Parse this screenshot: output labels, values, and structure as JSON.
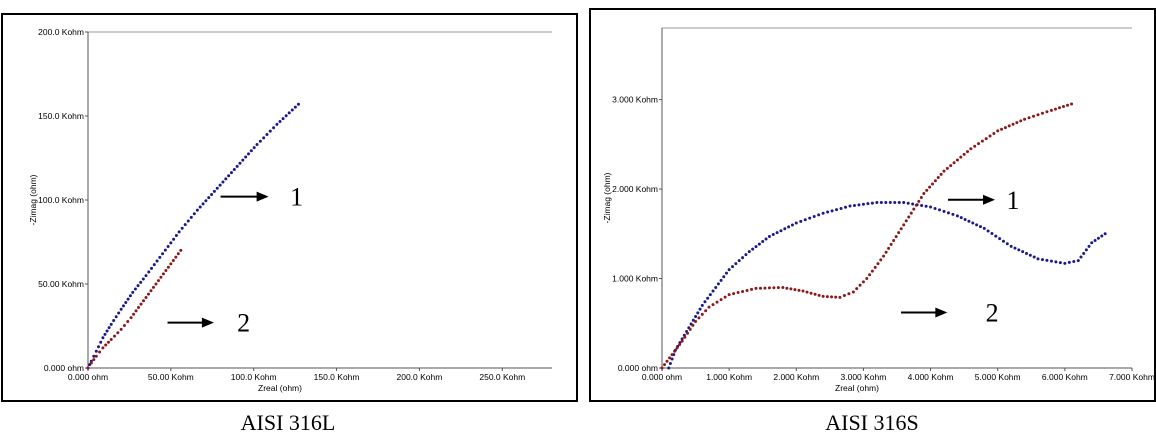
{
  "chart_data": [
    {
      "type": "scatter",
      "caption": "AISI 316L",
      "xlabel": "Zreal (ohm)",
      "ylabel": "-Zimag (ohm)",
      "xlim": [
        0,
        280000
      ],
      "ylim": [
        0,
        200000
      ],
      "x_ticks": [
        {
          "value": 0,
          "label": "0.000 ohm"
        },
        {
          "value": 50000,
          "label": "50.00 Kohm"
        },
        {
          "value": 100000,
          "label": "100.0 Kohm"
        },
        {
          "value": 150000,
          "label": "150.0 Kohm"
        },
        {
          "value": 200000,
          "label": "200.0 Kohm"
        },
        {
          "value": 250000,
          "label": "250.0 Kohm"
        }
      ],
      "y_ticks": [
        {
          "value": 0,
          "label": "0.000 ohm"
        },
        {
          "value": 50000,
          "label": "50.00 Kohm"
        },
        {
          "value": 100000,
          "label": "100.0 Kohm"
        },
        {
          "value": 150000,
          "label": "150.0 Kohm"
        },
        {
          "value": 200000,
          "label": "200.0 Kohm"
        }
      ],
      "annotations": [
        {
          "text": "1",
          "x": 122000,
          "y": 102000,
          "arrow_from": 80000,
          "arrow_to": 109000
        },
        {
          "text": "2",
          "x": 90000,
          "y": 27000,
          "arrow_from": 48000,
          "arrow_to": 76000
        }
      ],
      "series": [
        {
          "color": "#1a1a8c",
          "points": [
            [
              0,
              0
            ],
            [
              2000,
              4000
            ],
            [
              5000,
              10000
            ],
            [
              9000,
              18000
            ],
            [
              14000,
              26000
            ],
            [
              20000,
              35000
            ],
            [
              27000,
              45000
            ],
            [
              35000,
              55000
            ],
            [
              45000,
              68000
            ],
            [
              55000,
              81000
            ],
            [
              66000,
              94000
            ],
            [
              78000,
              107000
            ],
            [
              90000,
              120000
            ],
            [
              102000,
              133000
            ],
            [
              114000,
              145000
            ],
            [
              127000,
              157000
            ]
          ]
        },
        {
          "color": "#8b1a1a",
          "points": [
            [
              0,
              0
            ],
            [
              2000,
              3000
            ],
            [
              5000,
              7000
            ],
            [
              9000,
              12000
            ],
            [
              14000,
              17000
            ],
            [
              20000,
              23000
            ],
            [
              26000,
              30000
            ],
            [
              32000,
              38000
            ],
            [
              38000,
              46000
            ],
            [
              44000,
              54000
            ],
            [
              50000,
              62000
            ],
            [
              56000,
              70000
            ]
          ]
        }
      ]
    },
    {
      "type": "scatter",
      "caption": "AISI 316S",
      "xlabel": "Zreal (ohm)",
      "ylabel": "-Zimag (ohm)",
      "xlim": [
        0,
        7000
      ],
      "ylim": [
        0,
        3800
      ],
      "x_ticks": [
        {
          "value": 0,
          "label": "0.000 ohm"
        },
        {
          "value": 1000,
          "label": "1.000 Kohm"
        },
        {
          "value": 2000,
          "label": "2.000 Kohm"
        },
        {
          "value": 3000,
          "label": "3.000 Kohm"
        },
        {
          "value": 4000,
          "label": "4.000 Kohm"
        },
        {
          "value": 5000,
          "label": "5.000 Kohm"
        },
        {
          "value": 6000,
          "label": "6.000 Kohm"
        },
        {
          "value": 7000,
          "label": "7.000 Kohm"
        }
      ],
      "y_ticks": [
        {
          "value": 0,
          "label": "0.000 ohm"
        },
        {
          "value": 1000,
          "label": "1.000 Kohm"
        },
        {
          "value": 2000,
          "label": "2.000 Kohm"
        },
        {
          "value": 3000,
          "label": "3.000 Kohm"
        }
      ],
      "annotations": [
        {
          "text": "1",
          "x": 5130,
          "y": 1880,
          "arrow_from": 4260,
          "arrow_to": 4960
        },
        {
          "text": "2",
          "x": 4820,
          "y": 620,
          "arrow_from": 3560,
          "arrow_to": 4250
        }
      ],
      "series": [
        {
          "color": "#1a1a8c",
          "points": [
            [
              100,
              0
            ],
            [
              200,
              200
            ],
            [
              400,
              450
            ],
            [
              600,
              700
            ],
            [
              800,
              900
            ],
            [
              1000,
              1100
            ],
            [
              1300,
              1300
            ],
            [
              1600,
              1470
            ],
            [
              2000,
              1620
            ],
            [
              2400,
              1730
            ],
            [
              2800,
              1810
            ],
            [
              3200,
              1850
            ],
            [
              3600,
              1850
            ],
            [
              4000,
              1800
            ],
            [
              4400,
              1700
            ],
            [
              4800,
              1560
            ],
            [
              5200,
              1360
            ],
            [
              5600,
              1220
            ],
            [
              6000,
              1170
            ],
            [
              6200,
              1200
            ],
            [
              6400,
              1400
            ],
            [
              6600,
              1500
            ]
          ]
        },
        {
          "color": "#8b1a1a",
          "points": [
            [
              0,
              0
            ],
            [
              150,
              150
            ],
            [
              300,
              300
            ],
            [
              500,
              520
            ],
            [
              700,
              680
            ],
            [
              1000,
              820
            ],
            [
              1400,
              890
            ],
            [
              1800,
              900
            ],
            [
              2100,
              860
            ],
            [
              2400,
              800
            ],
            [
              2650,
              790
            ],
            [
              2850,
              850
            ],
            [
              3050,
              1000
            ],
            [
              3300,
              1250
            ],
            [
              3600,
              1600
            ],
            [
              3900,
              1950
            ],
            [
              4200,
              2200
            ],
            [
              4600,
              2450
            ],
            [
              5000,
              2650
            ],
            [
              5400,
              2780
            ],
            [
              5800,
              2880
            ],
            [
              6100,
              2950
            ]
          ]
        }
      ]
    }
  ]
}
